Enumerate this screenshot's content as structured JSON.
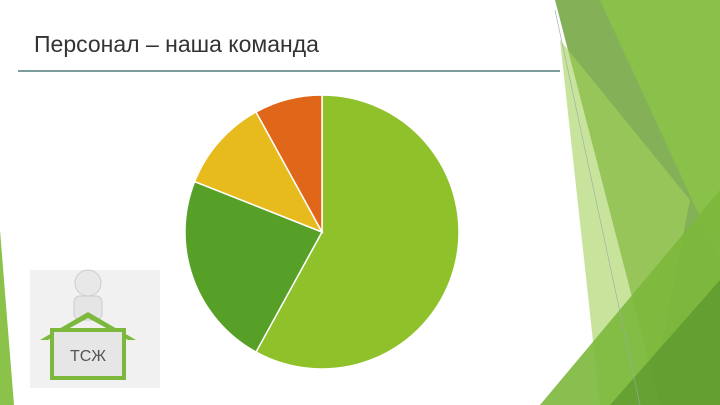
{
  "chart_data": {
    "type": "pie",
    "title": "Персонал – наша команда",
    "values": [
      58,
      23,
      11,
      8
    ],
    "colors": [
      "#8fc12a",
      "#56a027",
      "#e7bb1d",
      "#e0661a"
    ]
  },
  "illustration": {
    "label": "ТСЖ"
  }
}
